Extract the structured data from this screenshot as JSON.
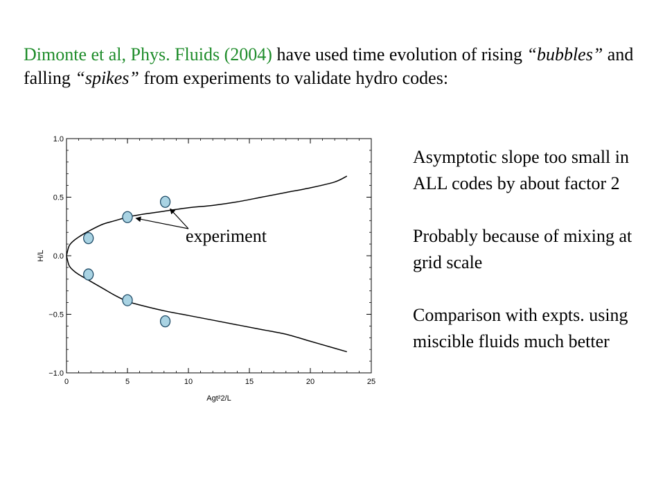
{
  "intro": {
    "reference": "Dimonte et al, Phys. Fluids (2004)",
    "part1": " have used time evolution of rising ",
    "bubbles": "“bubbles”",
    "part2": " and falling ",
    "spikes": "“spikes”",
    "part3": " from experiments to validate hydro codes:"
  },
  "chart_data": {
    "type": "line",
    "xlabel": "Agt²2/L",
    "ylabel": "H/L",
    "xlim": [
      0,
      25
    ],
    "ylim": [
      -1.0,
      1.0
    ],
    "xticks": [
      0,
      5,
      10,
      15,
      20,
      25
    ],
    "yticks": [
      -1.0,
      -0.5,
      0.0,
      0.5,
      1.0
    ],
    "xtick_labels": [
      "0",
      "5",
      "10",
      "15",
      "20",
      "25"
    ],
    "ytick_labels": [
      "−1.0",
      "−0.5",
      "0.0",
      "0.5",
      "1.0"
    ],
    "grid": false,
    "series": [
      {
        "role": "bubbles (simulation)",
        "x": [
          0,
          0.2,
          0.5,
          1,
          2,
          3,
          4,
          5,
          6,
          8,
          10,
          12,
          14,
          16,
          18,
          20,
          22,
          23
        ],
        "y": [
          0.0,
          0.08,
          0.12,
          0.16,
          0.22,
          0.27,
          0.3,
          0.33,
          0.35,
          0.38,
          0.41,
          0.43,
          0.46,
          0.5,
          0.54,
          0.58,
          0.63,
          0.68
        ]
      },
      {
        "role": "spikes (simulation)",
        "x": [
          0,
          0.2,
          0.5,
          1,
          2,
          3,
          4,
          5,
          6,
          8,
          10,
          12,
          14,
          16,
          18,
          20,
          22,
          23
        ],
        "y": [
          0.0,
          -0.08,
          -0.12,
          -0.16,
          -0.22,
          -0.28,
          -0.34,
          -0.39,
          -0.42,
          -0.47,
          -0.51,
          -0.55,
          -0.59,
          -0.63,
          -0.67,
          -0.73,
          -0.79,
          -0.82
        ]
      }
    ],
    "markers": {
      "role": "experiment",
      "fill": "#a9d3e3",
      "stroke": "#1d4a66",
      "points": [
        {
          "x": 1.8,
          "y": 0.15
        },
        {
          "x": 5.0,
          "y": 0.33
        },
        {
          "x": 8.1,
          "y": 0.46
        },
        {
          "x": 1.8,
          "y": -0.16
        },
        {
          "x": 5.0,
          "y": -0.38
        },
        {
          "x": 8.1,
          "y": -0.56
        }
      ]
    },
    "annotation": {
      "text": "experiment",
      "arrow_targets": [
        {
          "x": 5.7,
          "y": 0.32
        },
        {
          "x": 8.5,
          "y": 0.4
        }
      ]
    }
  },
  "notes": [
    "Asymptotic slope too small in ALL codes by about factor 2",
    "Probably because of mixing at grid scale",
    "Comparison with expts. using miscible fluids much better"
  ]
}
